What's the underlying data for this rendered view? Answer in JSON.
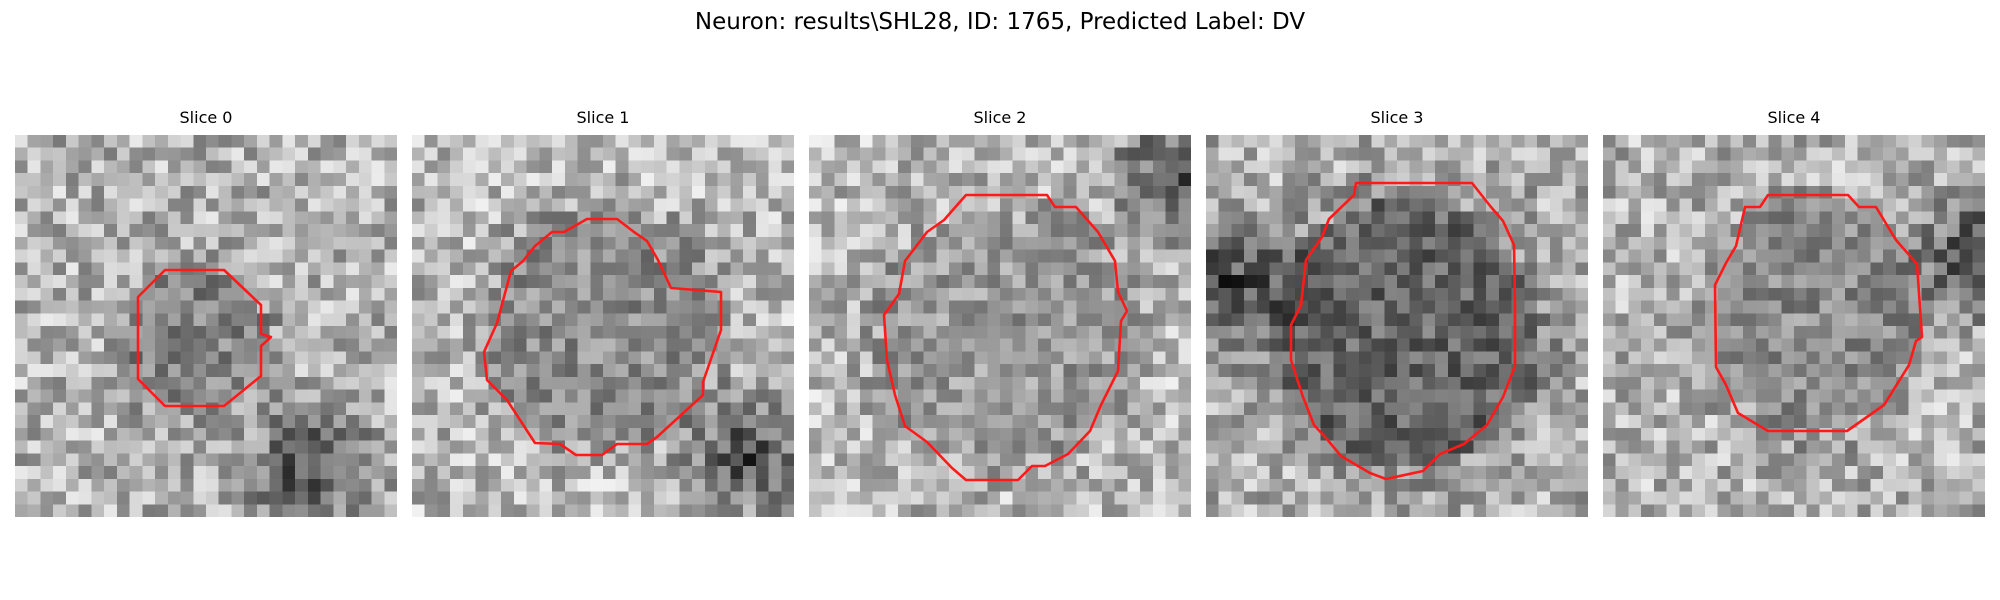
{
  "figure": {
    "title": "Neuron: results\\SHL28, ID: 1765, Predicted Label: DV"
  },
  "slices": [
    {
      "label": "Slice 0",
      "contour_color": "#ff1a1a"
    },
    {
      "label": "Slice 1",
      "contour_color": "#ff1a1a"
    },
    {
      "label": "Slice 2",
      "contour_color": "#ff1a1a"
    },
    {
      "label": "Slice 3",
      "contour_color": "#ff1a1a"
    },
    {
      "label": "Slice 4",
      "contour_color": "#ff1a1a"
    }
  ]
}
